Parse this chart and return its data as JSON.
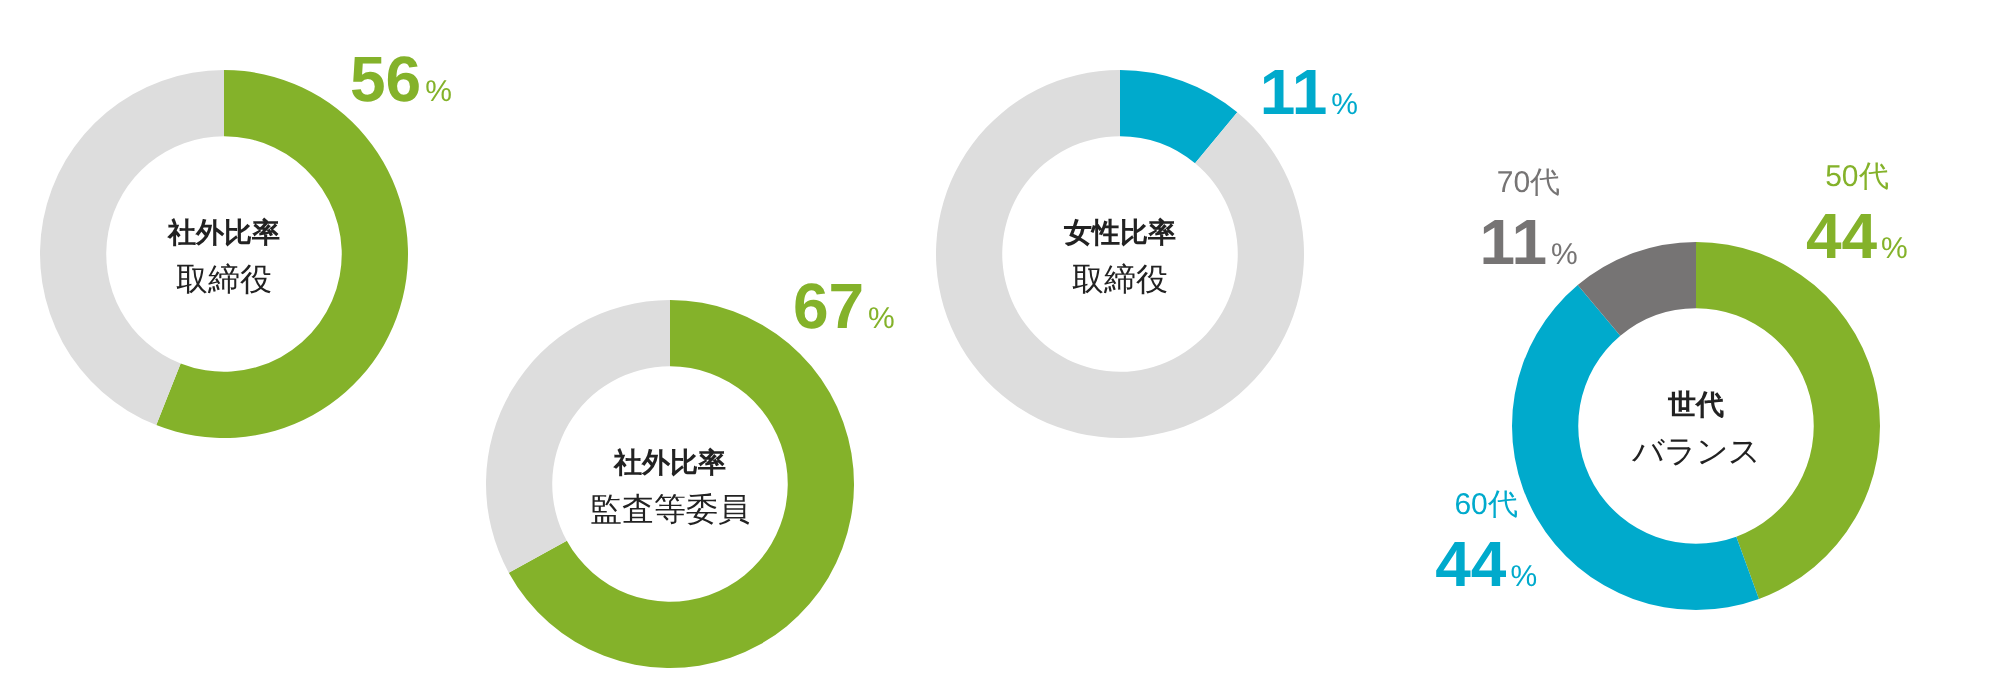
{
  "chart_data": [
    {
      "type": "donut",
      "title": "社外比率",
      "subtitle": "取締役",
      "categories": [
        null,
        null
      ],
      "values": [
        56,
        44
      ],
      "colors": [
        "#84b22a",
        "#dddddd"
      ],
      "value_labels": [
        "56%",
        null
      ]
    },
    {
      "type": "donut",
      "title": "社外比率",
      "subtitle": "監査等委員",
      "categories": [
        null,
        null
      ],
      "values": [
        67,
        33
      ],
      "colors": [
        "#84b22a",
        "#dddddd"
      ],
      "value_labels": [
        "67%",
        null
      ]
    },
    {
      "type": "donut",
      "title": "女性比率",
      "subtitle": "取締役",
      "categories": [
        null,
        null
      ],
      "values": [
        11,
        89
      ],
      "colors": [
        "#00aacc",
        "#dddddd"
      ],
      "value_labels": [
        "11%",
        null
      ]
    },
    {
      "type": "donut",
      "title": "世代",
      "subtitle": "バランス",
      "categories": [
        "50代",
        "60代",
        "70代"
      ],
      "values": [
        44,
        44,
        11
      ],
      "colors": [
        "#84b22a",
        "#00aacc",
        "#767474"
      ],
      "value_labels": [
        "44%",
        "44%",
        "11%"
      ]
    }
  ]
}
